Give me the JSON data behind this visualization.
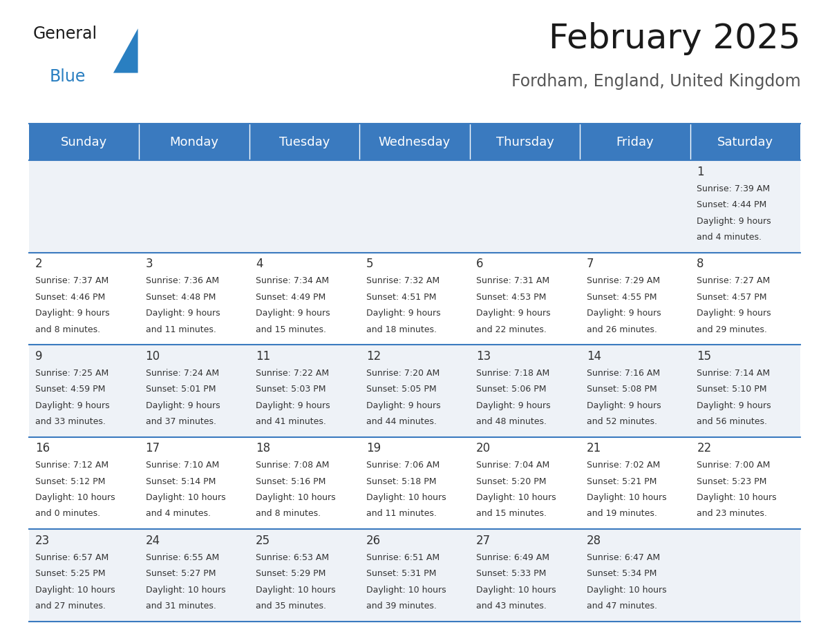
{
  "title": "February 2025",
  "subtitle": "Fordham, England, United Kingdom",
  "header_color": "#3a7abf",
  "header_text_color": "#ffffff",
  "cell_bg_even": "#eef2f7",
  "cell_bg_odd": "#ffffff",
  "border_color": "#3a7abf",
  "text_color": "#333333",
  "days_of_week": [
    "Sunday",
    "Monday",
    "Tuesday",
    "Wednesday",
    "Thursday",
    "Friday",
    "Saturday"
  ],
  "calendar_data": [
    [
      null,
      null,
      null,
      null,
      null,
      null,
      {
        "day": "1",
        "sunrise": "7:39 AM",
        "sunset": "4:44 PM",
        "daylight_h": "9 hours",
        "daylight_m": "and 4 minutes."
      }
    ],
    [
      {
        "day": "2",
        "sunrise": "7:37 AM",
        "sunset": "4:46 PM",
        "daylight_h": "9 hours",
        "daylight_m": "and 8 minutes."
      },
      {
        "day": "3",
        "sunrise": "7:36 AM",
        "sunset": "4:48 PM",
        "daylight_h": "9 hours",
        "daylight_m": "and 11 minutes."
      },
      {
        "day": "4",
        "sunrise": "7:34 AM",
        "sunset": "4:49 PM",
        "daylight_h": "9 hours",
        "daylight_m": "and 15 minutes."
      },
      {
        "day": "5",
        "sunrise": "7:32 AM",
        "sunset": "4:51 PM",
        "daylight_h": "9 hours",
        "daylight_m": "and 18 minutes."
      },
      {
        "day": "6",
        "sunrise": "7:31 AM",
        "sunset": "4:53 PM",
        "daylight_h": "9 hours",
        "daylight_m": "and 22 minutes."
      },
      {
        "day": "7",
        "sunrise": "7:29 AM",
        "sunset": "4:55 PM",
        "daylight_h": "9 hours",
        "daylight_m": "and 26 minutes."
      },
      {
        "day": "8",
        "sunrise": "7:27 AM",
        "sunset": "4:57 PM",
        "daylight_h": "9 hours",
        "daylight_m": "and 29 minutes."
      }
    ],
    [
      {
        "day": "9",
        "sunrise": "7:25 AM",
        "sunset": "4:59 PM",
        "daylight_h": "9 hours",
        "daylight_m": "and 33 minutes."
      },
      {
        "day": "10",
        "sunrise": "7:24 AM",
        "sunset": "5:01 PM",
        "daylight_h": "9 hours",
        "daylight_m": "and 37 minutes."
      },
      {
        "day": "11",
        "sunrise": "7:22 AM",
        "sunset": "5:03 PM",
        "daylight_h": "9 hours",
        "daylight_m": "and 41 minutes."
      },
      {
        "day": "12",
        "sunrise": "7:20 AM",
        "sunset": "5:05 PM",
        "daylight_h": "9 hours",
        "daylight_m": "and 44 minutes."
      },
      {
        "day": "13",
        "sunrise": "7:18 AM",
        "sunset": "5:06 PM",
        "daylight_h": "9 hours",
        "daylight_m": "and 48 minutes."
      },
      {
        "day": "14",
        "sunrise": "7:16 AM",
        "sunset": "5:08 PM",
        "daylight_h": "9 hours",
        "daylight_m": "and 52 minutes."
      },
      {
        "day": "15",
        "sunrise": "7:14 AM",
        "sunset": "5:10 PM",
        "daylight_h": "9 hours",
        "daylight_m": "and 56 minutes."
      }
    ],
    [
      {
        "day": "16",
        "sunrise": "7:12 AM",
        "sunset": "5:12 PM",
        "daylight_h": "10 hours",
        "daylight_m": "and 0 minutes."
      },
      {
        "day": "17",
        "sunrise": "7:10 AM",
        "sunset": "5:14 PM",
        "daylight_h": "10 hours",
        "daylight_m": "and 4 minutes."
      },
      {
        "day": "18",
        "sunrise": "7:08 AM",
        "sunset": "5:16 PM",
        "daylight_h": "10 hours",
        "daylight_m": "and 8 minutes."
      },
      {
        "day": "19",
        "sunrise": "7:06 AM",
        "sunset": "5:18 PM",
        "daylight_h": "10 hours",
        "daylight_m": "and 11 minutes."
      },
      {
        "day": "20",
        "sunrise": "7:04 AM",
        "sunset": "5:20 PM",
        "daylight_h": "10 hours",
        "daylight_m": "and 15 minutes."
      },
      {
        "day": "21",
        "sunrise": "7:02 AM",
        "sunset": "5:21 PM",
        "daylight_h": "10 hours",
        "daylight_m": "and 19 minutes."
      },
      {
        "day": "22",
        "sunrise": "7:00 AM",
        "sunset": "5:23 PM",
        "daylight_h": "10 hours",
        "daylight_m": "and 23 minutes."
      }
    ],
    [
      {
        "day": "23",
        "sunrise": "6:57 AM",
        "sunset": "5:25 PM",
        "daylight_h": "10 hours",
        "daylight_m": "and 27 minutes."
      },
      {
        "day": "24",
        "sunrise": "6:55 AM",
        "sunset": "5:27 PM",
        "daylight_h": "10 hours",
        "daylight_m": "and 31 minutes."
      },
      {
        "day": "25",
        "sunrise": "6:53 AM",
        "sunset": "5:29 PM",
        "daylight_h": "10 hours",
        "daylight_m": "and 35 minutes."
      },
      {
        "day": "26",
        "sunrise": "6:51 AM",
        "sunset": "5:31 PM",
        "daylight_h": "10 hours",
        "daylight_m": "and 39 minutes."
      },
      {
        "day": "27",
        "sunrise": "6:49 AM",
        "sunset": "5:33 PM",
        "daylight_h": "10 hours",
        "daylight_m": "and 43 minutes."
      },
      {
        "day": "28",
        "sunrise": "6:47 AM",
        "sunset": "5:34 PM",
        "daylight_h": "10 hours",
        "daylight_m": "and 47 minutes."
      },
      null
    ]
  ],
  "logo_text1": "General",
  "logo_text2": "Blue",
  "logo_color1": "#1a1a1a",
  "logo_color2": "#2a7fc1",
  "triangle_color": "#2a7fc1",
  "title_fontsize": 36,
  "subtitle_fontsize": 17,
  "header_fontsize": 13,
  "day_num_fontsize": 12,
  "cell_text_fontsize": 9
}
